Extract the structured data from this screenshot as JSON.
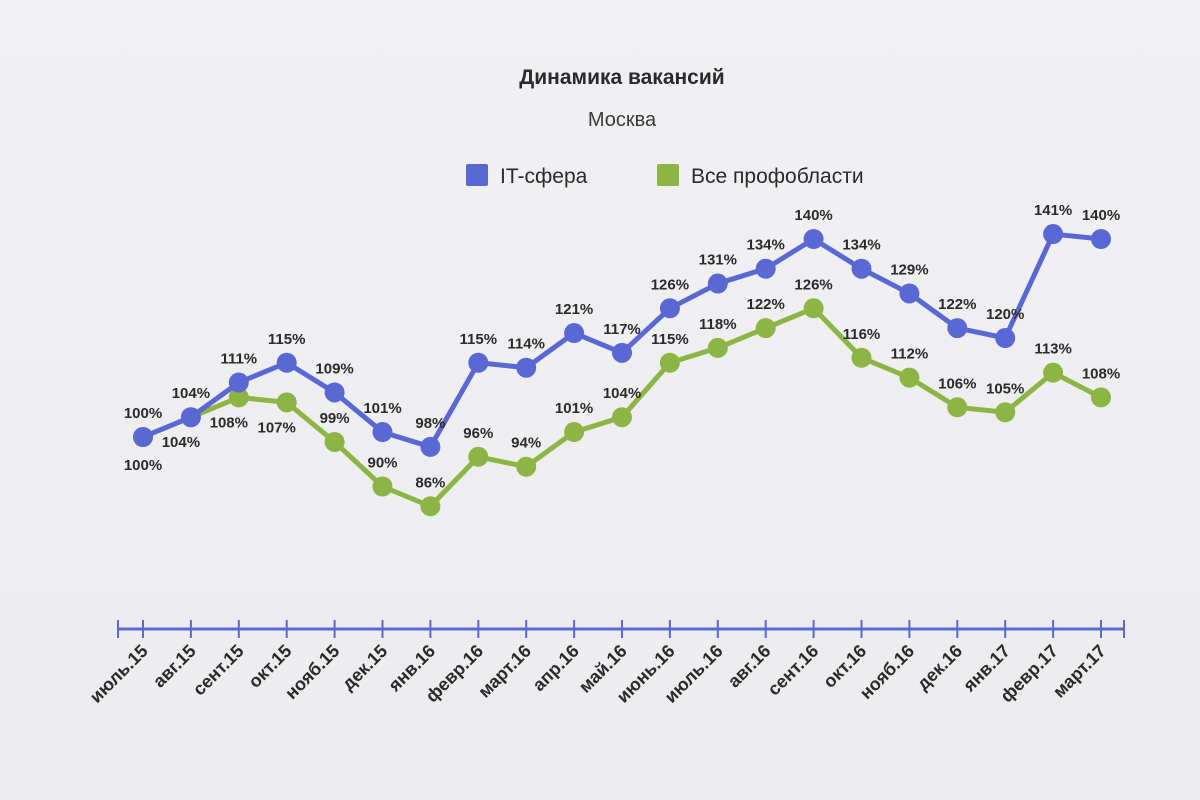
{
  "chart_data": {
    "type": "line",
    "title": "Динамика вакансий",
    "subtitle": "Москва",
    "xlabel": "",
    "ylabel": "",
    "categories": [
      "июль.15",
      "авг.15",
      "сент.15",
      "окт.15",
      "нояб.15",
      "дек.15",
      "янв.16",
      "февр.16",
      "март.16",
      "апр.16",
      "май.16",
      "июнь.16",
      "июль.16",
      "авг.16",
      "сент.16",
      "окт.16",
      "нояб.16",
      "дек.16",
      "янв.17",
      "февр.17",
      "март.17"
    ],
    "series": [
      {
        "name": "IT-сфера",
        "color": "#5a68d4",
        "values": [
          100,
          104,
          111,
          115,
          109,
          101,
          98,
          115,
          114,
          121,
          117,
          126,
          131,
          134,
          140,
          134,
          129,
          122,
          120,
          141,
          140
        ],
        "labels": [
          "100%",
          "104%",
          "111%",
          "115%",
          "109%",
          "101%",
          "98%",
          "115%",
          "114%",
          "121%",
          "117%",
          "126%",
          "131%",
          "134%",
          "140%",
          "134%",
          "129%",
          "122%",
          "120%",
          "141%",
          "140%"
        ]
      },
      {
        "name": "Все профобласти",
        "color": "#8db545",
        "values": [
          100,
          104,
          108,
          107,
          99,
          90,
          86,
          96,
          94,
          101,
          104,
          115,
          118,
          122,
          126,
          116,
          112,
          106,
          105,
          113,
          108
        ],
        "labels": [
          "100%",
          "104%",
          "108%",
          "107%",
          "99%",
          "90%",
          "86%",
          "96%",
          "94%",
          "101%",
          "104%",
          "115%",
          "118%",
          "122%",
          "126%",
          "116%",
          "112%",
          "106%",
          "105%",
          "113%",
          "108%"
        ]
      }
    ],
    "ylim": [
      80,
      145
    ],
    "grid": false,
    "legend_position": "top-center"
  }
}
